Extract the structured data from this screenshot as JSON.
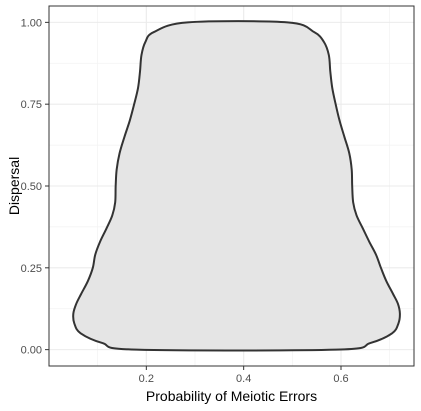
{
  "chart_data": {
    "type": "violin",
    "xlabel": "Probability of Meiotic Errors",
    "ylabel": "Dispersal",
    "xlim": [
      0.0,
      0.75
    ],
    "ylim": [
      -0.05,
      1.05
    ],
    "x_ticks": [
      0.2,
      0.4,
      0.6
    ],
    "x_tick_labels": [
      "0.2",
      "0.4",
      "0.6"
    ],
    "y_ticks": [
      0.0,
      0.25,
      0.5,
      0.75,
      1.0
    ],
    "y_tick_labels": [
      "0.00",
      "0.25",
      "0.50",
      "0.75",
      "1.00"
    ],
    "grid": true,
    "legend": "none",
    "fill_color": "#e5e5e5",
    "outline_color": "#333333",
    "outline": [
      {
        "y": 0.0,
        "left": 0.18,
        "right": 0.59
      },
      {
        "y": 0.02,
        "left": 0.11,
        "right": 0.66
      },
      {
        "y": 0.05,
        "left": 0.065,
        "right": 0.705
      },
      {
        "y": 0.08,
        "left": 0.052,
        "right": 0.718
      },
      {
        "y": 0.11,
        "left": 0.05,
        "right": 0.721
      },
      {
        "y": 0.14,
        "left": 0.056,
        "right": 0.717
      },
      {
        "y": 0.17,
        "left": 0.066,
        "right": 0.707
      },
      {
        "y": 0.21,
        "left": 0.08,
        "right": 0.693
      },
      {
        "y": 0.25,
        "left": 0.09,
        "right": 0.682
      },
      {
        "y": 0.29,
        "left": 0.095,
        "right": 0.672
      },
      {
        "y": 0.33,
        "left": 0.105,
        "right": 0.658
      },
      {
        "y": 0.37,
        "left": 0.118,
        "right": 0.645
      },
      {
        "y": 0.41,
        "left": 0.13,
        "right": 0.632
      },
      {
        "y": 0.45,
        "left": 0.136,
        "right": 0.625
      },
      {
        "y": 0.5,
        "left": 0.137,
        "right": 0.623
      },
      {
        "y": 0.55,
        "left": 0.139,
        "right": 0.622
      },
      {
        "y": 0.6,
        "left": 0.145,
        "right": 0.617
      },
      {
        "y": 0.65,
        "left": 0.155,
        "right": 0.607
      },
      {
        "y": 0.7,
        "left": 0.166,
        "right": 0.597
      },
      {
        "y": 0.75,
        "left": 0.175,
        "right": 0.589
      },
      {
        "y": 0.8,
        "left": 0.183,
        "right": 0.582
      },
      {
        "y": 0.85,
        "left": 0.187,
        "right": 0.578
      },
      {
        "y": 0.9,
        "left": 0.19,
        "right": 0.575
      },
      {
        "y": 0.94,
        "left": 0.198,
        "right": 0.565
      },
      {
        "y": 0.97,
        "left": 0.215,
        "right": 0.545
      },
      {
        "y": 1.0,
        "left": 0.285,
        "right": 0.49
      }
    ]
  }
}
